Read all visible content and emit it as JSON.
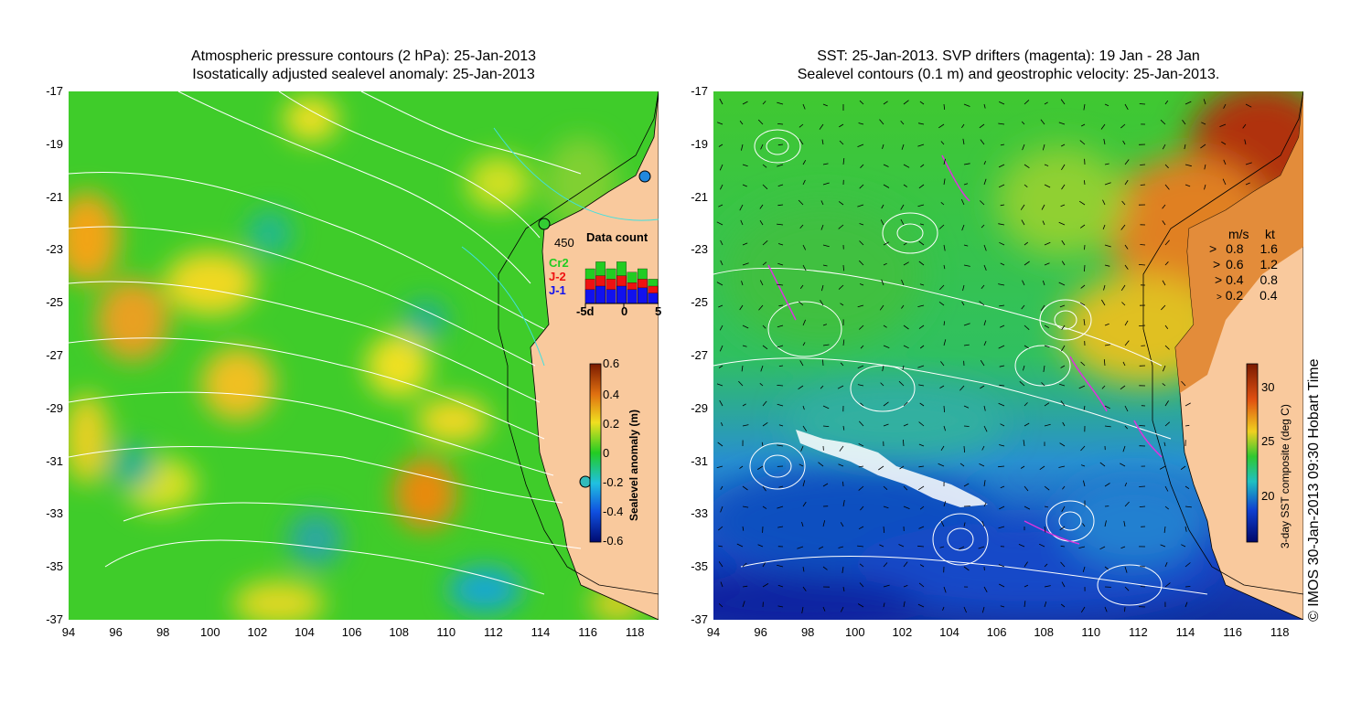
{
  "left": {
    "title_line1": "Atmospheric pressure contours (2 hPa): 25-Jan-2013",
    "title_line2": "Isostatically adjusted sealevel anomaly: 25-Jan-2013",
    "colorbar": {
      "label": "Sealevel anomaly (m)",
      "ticks": [
        "0.6",
        "0.4",
        "0.2",
        "0",
        "-0.2",
        "-0.4",
        "-0.6"
      ]
    },
    "inset": {
      "title": "Data count",
      "max_label": "450",
      "series": [
        {
          "name": "Cr2",
          "color": "#22cc22"
        },
        {
          "name": "J-2",
          "color": "#ee1111"
        },
        {
          "name": "J-1",
          "color": "#1111ee"
        }
      ],
      "x_ticks": [
        "-5d",
        "0",
        "5"
      ]
    }
  },
  "right": {
    "title_line1": "SST: 25-Jan-2013. SVP drifters (magenta): 19 Jan - 28 Jan",
    "title_line2": "Sealevel contours (0.1 m) and geostrophic velocity: 25-Jan-2013.",
    "colorbar": {
      "label": "3-day SST composite (deg C)",
      "ticks": [
        "30",
        "25",
        "20"
      ]
    },
    "velocity_legend": {
      "header_ms": "m/s",
      "header_kt": "kt",
      "rows": [
        {
          "ms": "0.8",
          "kt": "1.6"
        },
        {
          "ms": "0.6",
          "kt": "1.2"
        },
        {
          "ms": "0.4",
          "kt": "0.8"
        },
        {
          "ms": "0.2",
          "kt": "0.4"
        }
      ]
    }
  },
  "axes": {
    "y_ticks": [
      "-17",
      "-19",
      "-21",
      "-23",
      "-25",
      "-27",
      "-29",
      "-31",
      "-33",
      "-35",
      "-37"
    ],
    "x_ticks": [
      "94",
      "96",
      "98",
      "100",
      "102",
      "104",
      "106",
      "108",
      "110",
      "112",
      "114",
      "116",
      "118"
    ]
  },
  "copyright": "© IMOS 30-Jan-2013 09:30 Hobart Time",
  "colors": {
    "land": "#f9c99d",
    "coast": "#000000",
    "contour": "#ffffff",
    "drifter": "#dd33dd"
  }
}
